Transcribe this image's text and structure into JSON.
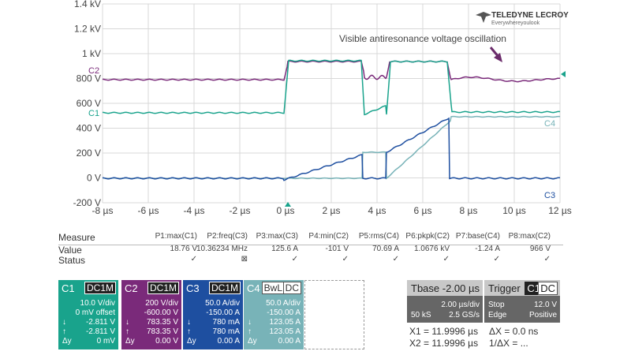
{
  "brand": {
    "name": "TELEDYNE LECROY",
    "tagline": "Everywhereyoulook"
  },
  "annotation": "Visible antiresonance voltage oscillation",
  "y_axis_left": [
    "1.4 kV",
    "1.2 kV",
    "1 kV",
    "800 V",
    "600 V",
    "400 V",
    "200 V",
    "0 V",
    "-200 V"
  ],
  "x_axis": [
    "-8 µs",
    "-6 µs",
    "-4 µs",
    "-2 µs",
    "0 µs",
    "2 µs",
    "4 µs",
    "6 µs",
    "8 µs",
    "10 µs",
    "12 µs"
  ],
  "trace_labels": {
    "c2": "C2",
    "c1": "C1",
    "c4": "C4",
    "c3": "C3"
  },
  "colors": {
    "c1": "#19a38c",
    "c2": "#7a2a7a",
    "c3": "#1e4fa0",
    "c4": "#78b3b8",
    "grid": "#d8d8d8"
  },
  "measure": {
    "labels": {
      "measure": "Measure",
      "value": "Value",
      "status": "Status"
    },
    "params": [
      {
        "name": "P1:max(C1)",
        "value": "18.76 V",
        "status": "✓"
      },
      {
        "name": "P2:freq(C3)",
        "value": "10.36234 MHz",
        "status": "⊠"
      },
      {
        "name": "P3:max(C3)",
        "value": "125.6 A",
        "status": "✓"
      },
      {
        "name": "P4:min(C2)",
        "value": "-101 V",
        "status": "✓"
      },
      {
        "name": "P5:rms(C4)",
        "value": "70.69 A",
        "status": "✓"
      },
      {
        "name": "P6:pkpk(C2)",
        "value": "1.0676 kV",
        "status": "✓"
      },
      {
        "name": "P7:base(C4)",
        "value": "-1.24 A",
        "status": "✓"
      },
      {
        "name": "P8:max(C2)",
        "value": "966 V",
        "status": "✓"
      }
    ]
  },
  "channels": {
    "c1": {
      "name": "C1",
      "coupling": "DC1M",
      "scale": "10.0 V/div",
      "offset": "0 mV offset",
      "down": "-2.811 V",
      "up": "-2.811 V",
      "dy": "0 mV"
    },
    "c2": {
      "name": "C2",
      "coupling": "DC1M",
      "scale": "200 V/div",
      "offset": "-600.00 V",
      "down": "783.35 V",
      "up": "783.35 V",
      "dy": "0.00 V"
    },
    "c3": {
      "name": "C3",
      "coupling": "DC1M",
      "scale": "50.0 A/div",
      "offset": "-150.00 A",
      "down": "780 mA",
      "up": "780 mA",
      "dy": "0.00 A"
    },
    "c4": {
      "name": "C4",
      "coupling_a": "BwL",
      "coupling_b": "DC",
      "scale": "50.0 A/div",
      "offset": "-150.00 A",
      "down": "123.05 A",
      "up": "123.05 A",
      "dy": "0.00 A"
    }
  },
  "cursor_glyphs": {
    "down": "↓",
    "up": "↑",
    "dy": "Δy"
  },
  "timebase": {
    "title": "Tbase",
    "delay": "-2.00 µs",
    "per_div": "2.00 µs/div",
    "samples": "50 kS",
    "rate": "2.5 GS/s"
  },
  "trigger": {
    "title": "Trigger",
    "source": "C1",
    "coupling": "DC",
    "mode": "Stop",
    "level": "12.0 V",
    "type": "Edge",
    "slope": "Positive"
  },
  "cursors": {
    "x1": "X1 = 11.9996 µs",
    "x2": "X2 = 11.9996 µs",
    "dx": "ΔX = 0.0 ns",
    "inv_dx": "1/ΔX = ..."
  }
}
